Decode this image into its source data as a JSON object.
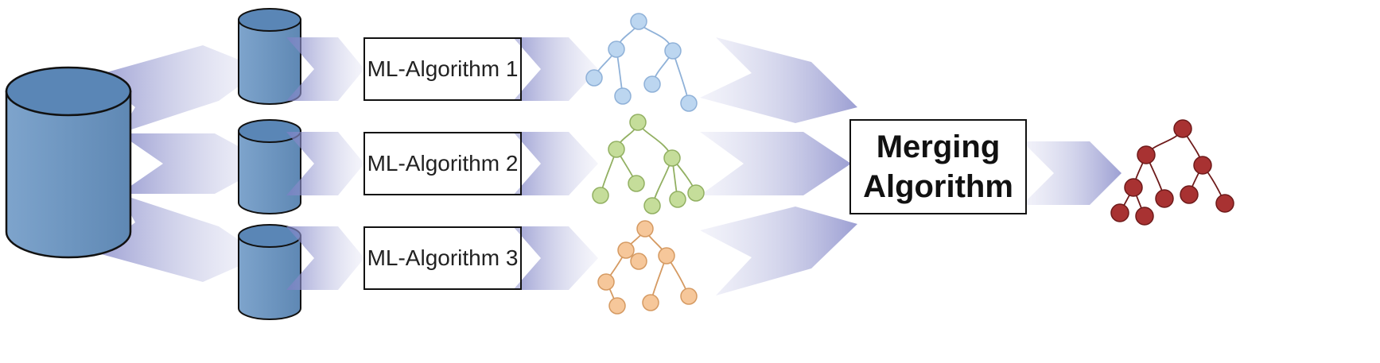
{
  "algorithms": {
    "a1": "ML-Algorithm 1",
    "a2": "ML-Algorithm 2",
    "a3": "ML-Algorithm 3"
  },
  "merge": {
    "line1": "Merging",
    "line2": "Algorithm"
  },
  "colors": {
    "arrow": "#7b7fc4",
    "cylinder_body": "#6e96c0",
    "cylinder_top": "#5a86b6",
    "tree1_node": "#bcd6f0",
    "tree1_stroke": "#8fb1d8",
    "tree2_node": "#c5dd9a",
    "tree2_stroke": "#92b062",
    "tree3_node": "#f6c79a",
    "tree3_stroke": "#d59a62",
    "tree_final_node": "#a83232",
    "tree_final_stroke": "#6e1a1a"
  }
}
